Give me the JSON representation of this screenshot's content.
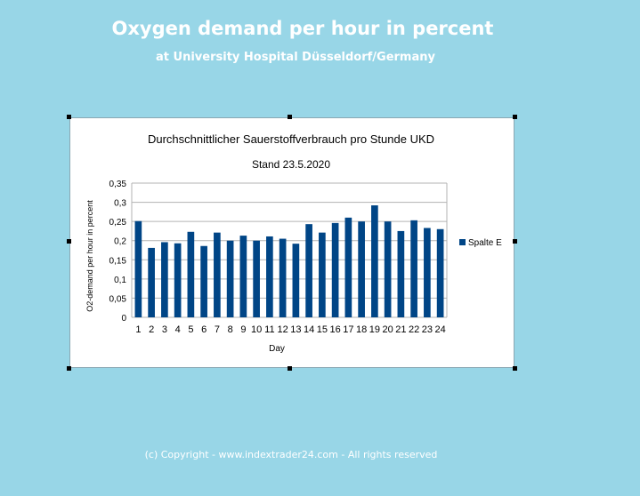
{
  "header": {
    "title": "Oxygen demand per hour in percent",
    "subtitle": "at University Hospital Düsseldorf/Germany"
  },
  "footer": {
    "copyright": "(c) Copyright - www.indextrader24.com - All rights reserved"
  },
  "chart_data": {
    "type": "bar",
    "title": "Durchschnittlicher Sauerstoffverbrauch pro Stunde UKD",
    "subtitle": "Stand 23.5.2020",
    "xlabel": "Day",
    "ylabel": "O2-demand per hour in percent",
    "ylim": [
      0,
      0.35
    ],
    "yticks": [
      0,
      0.05,
      0.1,
      0.15,
      0.2,
      0.25,
      0.3,
      0.35
    ],
    "ytick_labels": [
      "0",
      "0,05",
      "0,1",
      "0,15",
      "0,2",
      "0,25",
      "0,3",
      "0,35"
    ],
    "grid": true,
    "legend_position": "right",
    "bar_color": "#004586",
    "categories": [
      "1",
      "2",
      "3",
      "4",
      "5",
      "6",
      "7",
      "8",
      "9",
      "10",
      "11",
      "12",
      "13",
      "14",
      "15",
      "16",
      "17",
      "18",
      "19",
      "20",
      "21",
      "22",
      "23",
      "24"
    ],
    "series": [
      {
        "name": "Spalte E",
        "values": [
          0.251,
          0.181,
          0.196,
          0.193,
          0.223,
          0.186,
          0.221,
          0.2,
          0.213,
          0.2,
          0.211,
          0.205,
          0.192,
          0.243,
          0.221,
          0.246,
          0.26,
          0.25,
          0.292,
          0.25,
          0.225,
          0.253,
          0.233,
          0.23
        ]
      }
    ]
  }
}
